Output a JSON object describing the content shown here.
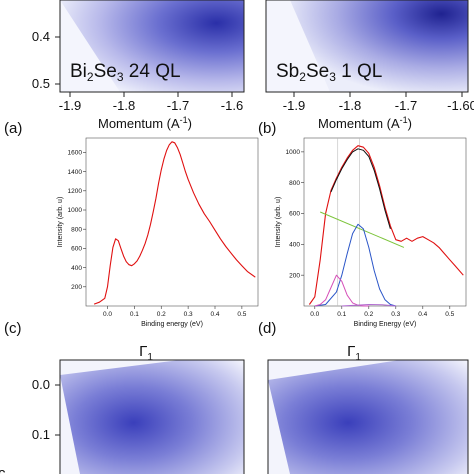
{
  "panels": {
    "top_left": {
      "label_base": "Bi",
      "label_sub1": "2",
      "label_mid": "Se",
      "label_sub2": "3",
      "label_tail": " 24 QL"
    },
    "top_right": {
      "label_base": "Sb",
      "label_sub1": "2",
      "label_mid": "Se",
      "label_sub2": "3",
      "label_tail": " 1 QL"
    },
    "momentum_axis": {
      "label": "Momentum (A",
      "label_exp": "-1",
      "label_close": ")",
      "ticks": [
        "-1.9",
        "-1.8",
        "-1.7",
        "-1.6"
      ],
      "ticks_right": [
        "-1.9",
        "-1.8",
        "-1.7",
        "-1.60"
      ]
    },
    "energy_ticks_top": [
      "0.4",
      "0.5"
    ],
    "energy_ticks_bottom": [
      "0.0",
      "0.1"
    ],
    "letters": {
      "a": "(a)",
      "b": "(b)",
      "c": "(c)",
      "d": "(d)"
    },
    "gamma_label": "Γ",
    "gamma_sub": "1",
    "bottom_left_letter": "c"
  },
  "chart_data": [
    {
      "type": "line",
      "panel": "(a)",
      "xlabel": "Binding energy (eV)",
      "ylabel": "Intensity (arb. u)",
      "xlim": [
        -0.08,
        0.56
      ],
      "ylim": [
        0,
        1750
      ],
      "xticks": [
        "0.0",
        "0.1",
        "0.2",
        "0.3",
        "0.4",
        "0.5"
      ],
      "yticks": [
        "200",
        "400",
        "600",
        "800",
        "1000",
        "1200",
        "1400",
        "1600"
      ],
      "series": [
        {
          "color": "#e01010",
          "x": [
            -0.05,
            -0.03,
            -0.01,
            0.0,
            0.01,
            0.02,
            0.03,
            0.04,
            0.05,
            0.06,
            0.07,
            0.08,
            0.09,
            0.1,
            0.11,
            0.12,
            0.13,
            0.14,
            0.15,
            0.16,
            0.17,
            0.18,
            0.19,
            0.2,
            0.21,
            0.22,
            0.23,
            0.24,
            0.25,
            0.26,
            0.27,
            0.28,
            0.29,
            0.3,
            0.32,
            0.34,
            0.36,
            0.38,
            0.4,
            0.42,
            0.44,
            0.46,
            0.48,
            0.5,
            0.52,
            0.55
          ],
          "y": [
            20,
            40,
            80,
            200,
            420,
            610,
            700,
            680,
            600,
            520,
            460,
            430,
            420,
            440,
            470,
            520,
            580,
            650,
            740,
            850,
            980,
            1120,
            1280,
            1420,
            1530,
            1620,
            1680,
            1710,
            1700,
            1650,
            1580,
            1490,
            1400,
            1320,
            1180,
            1060,
            960,
            880,
            790,
            700,
            620,
            550,
            480,
            420,
            360,
            300
          ]
        }
      ]
    },
    {
      "type": "line",
      "panel": "(b)",
      "xlabel": "Binding Energy (eV)",
      "ylabel": "Intensity (arb. u)",
      "xlim": [
        -0.04,
        0.56
      ],
      "ylim": [
        0,
        1090
      ],
      "xticks": [
        "0.0",
        "0.1",
        "0.2",
        "0.3",
        "0.4",
        "0.5"
      ],
      "yticks": [
        "200",
        "400",
        "600",
        "800",
        "1000"
      ],
      "series": [
        {
          "color": "#e01010",
          "x": [
            -0.02,
            0.0,
            0.02,
            0.04,
            0.06,
            0.08,
            0.1,
            0.12,
            0.14,
            0.16,
            0.18,
            0.2,
            0.22,
            0.24,
            0.26,
            0.28,
            0.3,
            0.32,
            0.34,
            0.36,
            0.38,
            0.4,
            0.42,
            0.44,
            0.46,
            0.48,
            0.5,
            0.52,
            0.55
          ],
          "y": [
            10,
            60,
            300,
            600,
            750,
            830,
            900,
            960,
            1010,
            1040,
            1030,
            990,
            900,
            780,
            640,
            520,
            430,
            420,
            440,
            420,
            440,
            450,
            430,
            410,
            380,
            340,
            300,
            260,
            200
          ]
        },
        {
          "color": "#111111",
          "x": [
            0.06,
            0.08,
            0.1,
            0.12,
            0.14,
            0.16,
            0.18,
            0.2,
            0.22,
            0.24,
            0.26,
            0.28
          ],
          "y": [
            740,
            820,
            890,
            950,
            1000,
            1020,
            1010,
            970,
            880,
            760,
            620,
            500
          ]
        },
        {
          "color": "#7cc43a",
          "x": [
            0.02,
            0.33
          ],
          "y": [
            610,
            380
          ]
        },
        {
          "color": "#2a55c8",
          "x": [
            0.0,
            0.04,
            0.08,
            0.1,
            0.12,
            0.14,
            0.16,
            0.18,
            0.2,
            0.22,
            0.24,
            0.26,
            0.28,
            0.3
          ],
          "y": [
            0,
            10,
            90,
            200,
            340,
            470,
            530,
            500,
            380,
            230,
            110,
            40,
            10,
            0
          ]
        },
        {
          "color": "#d64fb8",
          "x": [
            0.0,
            0.02,
            0.04,
            0.06,
            0.08,
            0.1,
            0.12,
            0.14,
            0.16,
            0.18,
            0.2
          ],
          "y": [
            0,
            10,
            40,
            120,
            200,
            160,
            70,
            20,
            5,
            0,
            0
          ]
        },
        {
          "color": "#b06ad0",
          "x": [
            0.1,
            0.15,
            0.2,
            0.25,
            0.3
          ],
          "y": [
            0,
            5,
            10,
            8,
            0
          ]
        }
      ],
      "vlines": [
        0.085,
        0.165
      ]
    }
  ]
}
